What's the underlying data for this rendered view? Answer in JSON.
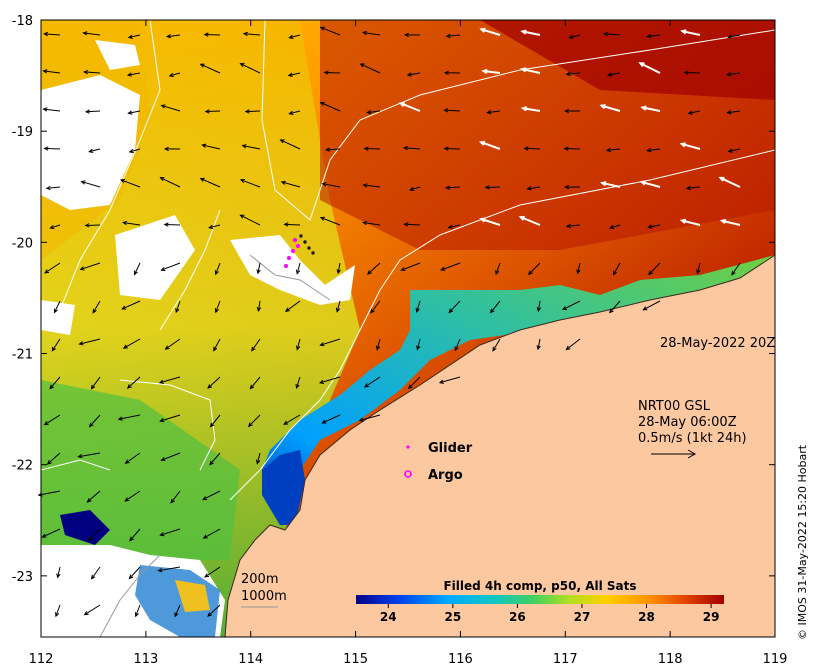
{
  "map": {
    "timestamp": "28-May-2022 20Z",
    "current_product": "NRT00 GSL",
    "current_time": "28-May 06:00Z",
    "vector_scale": "0.5m/s (1kt 24h)",
    "isobath_1": "200m",
    "isobath_2": "1000m",
    "credit": "© IMOS 31-May-2022 15:20 Hobart"
  },
  "legend": {
    "glider_label": "Glider",
    "argo_label": "Argo",
    "glider_color": "#ff00ff",
    "argo_color": "#ff00ff"
  },
  "colorbar": {
    "title": "Filled 4h comp, p50, All Sats",
    "ticks": [
      "24",
      "25",
      "26",
      "27",
      "28",
      "29"
    ],
    "range": [
      23.5,
      29.2
    ],
    "colors": [
      "#00008b",
      "#0066ff",
      "#00bfff",
      "#20c8a0",
      "#90d040",
      "#e8e000",
      "#ffb000",
      "#ff8000",
      "#e05000",
      "#b00000"
    ]
  },
  "axes": {
    "x_ticks": [
      "112",
      "113",
      "114",
      "115",
      "116",
      "117",
      "118",
      "119"
    ],
    "y_ticks": [
      "-18",
      "-19",
      "-20",
      "-21",
      "-22",
      "-23"
    ],
    "x_range": [
      112,
      119
    ],
    "y_range": [
      -23.55,
      -18
    ]
  },
  "colors": {
    "land": "#fcc8a0",
    "no_data": "#ffffff"
  }
}
